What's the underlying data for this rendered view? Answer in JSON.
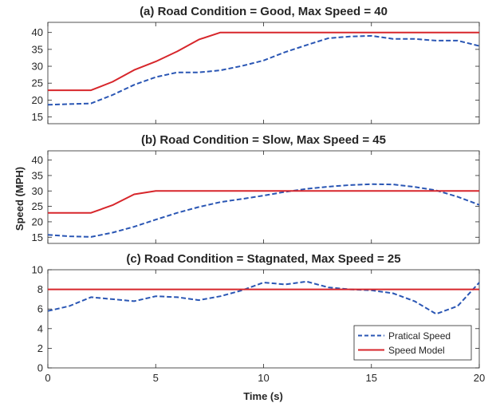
{
  "figure": {
    "ylabel": "Speed (MPH)",
    "xlabel": "Time (s)"
  },
  "colors": {
    "practical": "#2a56b4",
    "model": "#d7262b",
    "axis": "#262626"
  },
  "legend": {
    "placement": "bottom-right of panel (c)",
    "items": [
      "Pratical Speed",
      "Speed Model"
    ]
  },
  "chart_data": [
    {
      "type": "line",
      "title": "(a) Road Condition = Good, Max Speed = 40",
      "xlim": [
        0,
        20
      ],
      "ylim": [
        13,
        43
      ],
      "yticks": [
        15,
        20,
        25,
        30,
        35,
        40
      ],
      "xticklabels_visible": false,
      "series": [
        {
          "name": "Pratical Speed",
          "style": "dashed",
          "x": [
            0,
            1,
            2,
            3,
            4,
            5,
            6,
            7,
            8,
            9,
            10,
            11,
            12,
            13,
            14,
            15,
            16,
            17,
            18,
            19,
            20
          ],
          "y": [
            18.6,
            18.8,
            19.0,
            21.5,
            24.5,
            26.8,
            28.2,
            28.2,
            28.8,
            30.1,
            31.7,
            34.2,
            36.3,
            38.3,
            38.8,
            39.0,
            38.1,
            38.1,
            37.6,
            37.6,
            36.0
          ]
        },
        {
          "name": "Speed Model",
          "style": "solid",
          "x": [
            0,
            1,
            2,
            3,
            4,
            5,
            6,
            7,
            8,
            9,
            10,
            11,
            12,
            13,
            14,
            15,
            16,
            17,
            18,
            19,
            20
          ],
          "y": [
            22.9,
            22.9,
            22.9,
            25.4,
            28.9,
            31.4,
            34.4,
            37.9,
            40,
            40,
            40,
            40,
            40,
            40,
            40,
            40,
            40,
            40,
            40,
            40,
            40
          ]
        }
      ]
    },
    {
      "type": "line",
      "title": "(b) Road Condition = Slow, Max Speed = 45",
      "xlim": [
        0,
        20
      ],
      "ylim": [
        13,
        43
      ],
      "yticks": [
        15,
        20,
        25,
        30,
        35,
        40
      ],
      "xticklabels_visible": false,
      "series": [
        {
          "name": "Pratical Speed",
          "style": "dashed",
          "x": [
            0,
            1,
            2,
            3,
            4,
            5,
            6,
            7,
            8,
            9,
            10,
            11,
            12,
            13,
            14,
            15,
            16,
            17,
            18,
            19,
            20
          ],
          "y": [
            15.8,
            15.3,
            15.1,
            16.5,
            18.4,
            20.7,
            22.9,
            24.8,
            26.4,
            27.4,
            28.5,
            29.7,
            30.7,
            31.4,
            31.9,
            32.2,
            32.1,
            31.3,
            30.2,
            28.1,
            25.5
          ]
        },
        {
          "name": "Speed Model",
          "style": "solid",
          "x": [
            0,
            1,
            2,
            3,
            4,
            5,
            6,
            7,
            8,
            9,
            10,
            11,
            12,
            13,
            14,
            15,
            16,
            17,
            18,
            19,
            20
          ],
          "y": [
            22.9,
            22.9,
            22.9,
            25.4,
            28.9,
            30,
            30,
            30,
            30,
            30,
            30,
            30,
            30,
            30,
            30,
            30,
            30,
            30,
            30,
            30,
            30
          ]
        }
      ]
    },
    {
      "type": "line",
      "title": "(c) Road Condition = Stagnated, Max Speed = 25",
      "xlim": [
        0,
        20
      ],
      "ylim": [
        0,
        10
      ],
      "yticks": [
        0,
        2,
        4,
        6,
        8,
        10
      ],
      "xticks": [
        0,
        5,
        10,
        15,
        20
      ],
      "xticklabels_visible": true,
      "series": [
        {
          "name": "Pratical Speed",
          "style": "dashed",
          "x": [
            0,
            1,
            2,
            3,
            4,
            5,
            6,
            7,
            8,
            9,
            10,
            11,
            12,
            13,
            14,
            15,
            16,
            17,
            18,
            19,
            20
          ],
          "y": [
            5.8,
            6.3,
            7.2,
            7.0,
            6.8,
            7.3,
            7.2,
            6.9,
            7.3,
            7.9,
            8.7,
            8.5,
            8.8,
            8.2,
            8.0,
            7.9,
            7.6,
            6.8,
            5.5,
            6.3,
            8.7
          ]
        },
        {
          "name": "Speed Model",
          "style": "solid",
          "x": [
            0,
            20
          ],
          "y": [
            8,
            8
          ]
        }
      ]
    }
  ]
}
